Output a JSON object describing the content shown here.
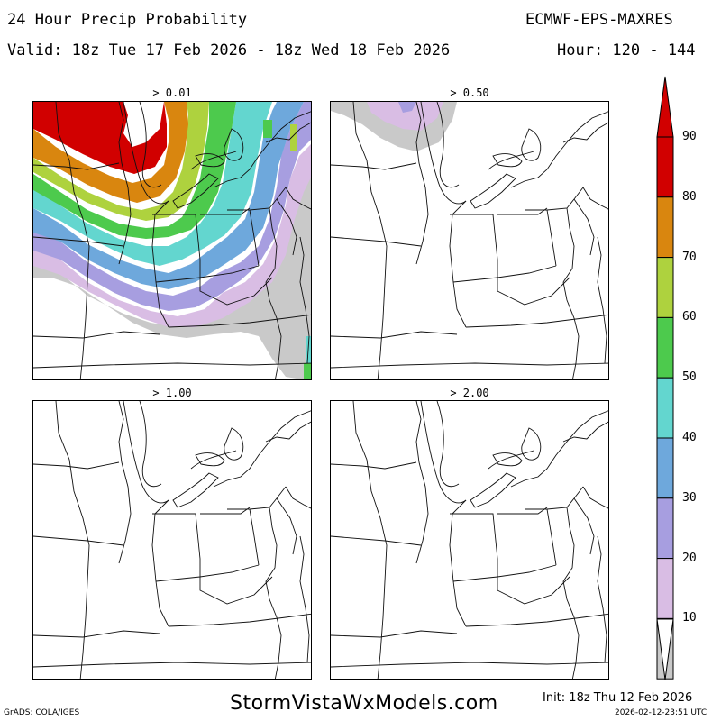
{
  "header": {
    "title": "24 Hour Precip Probability",
    "model": "ECMWF-EPS-MAXRES",
    "valid": "Valid: 18z Tue 17 Feb 2026 - 18z Wed 18 Feb 2026",
    "hour": "Hour: 120 - 144"
  },
  "panels": [
    {
      "label": "> 0.01"
    },
    {
      "label": "> 0.50"
    },
    {
      "label": "> 1.00"
    },
    {
      "label": "> 2.00"
    }
  ],
  "colorbar": {
    "ticks": [
      "90",
      "80",
      "70",
      "60",
      "50",
      "40",
      "30",
      "20",
      "10"
    ],
    "colors": [
      "#d10000",
      "#d9860f",
      "#aed23e",
      "#4dca4d",
      "#63d6cf",
      "#6ea8dc",
      "#a79ee0",
      "#d9bde4",
      "#c9c9c9"
    ]
  },
  "footer": {
    "grads": "GrADS: COLA/IGES",
    "site": "StormVistaWxModels.com",
    "init": "Init: 18z Thu 12 Feb 2026",
    "stamp": "2026-02-12-23:51 UTC"
  }
}
